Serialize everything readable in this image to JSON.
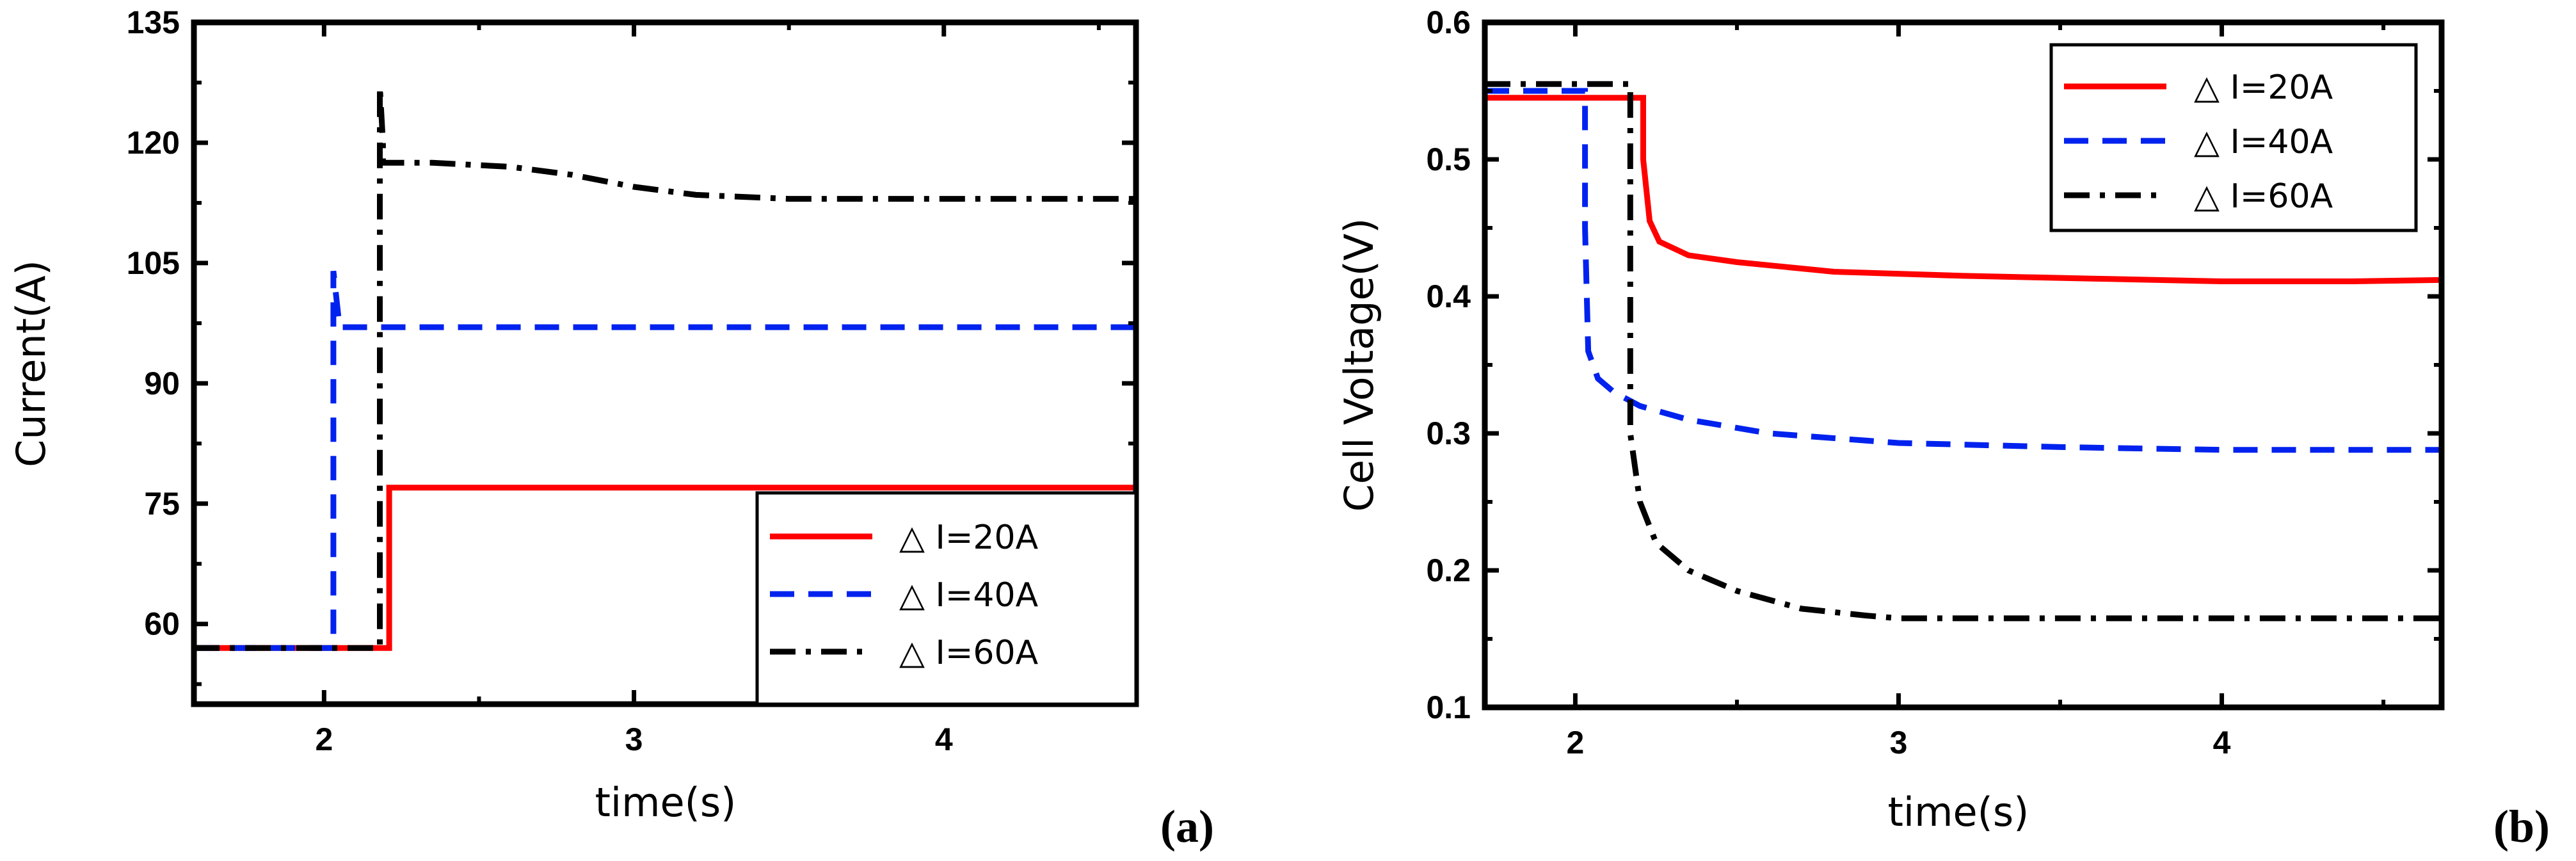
{
  "chart_data": [
    {
      "type": "line",
      "panel_label": "(a)",
      "title": "",
      "xlabel": "time(s)",
      "ylabel": "Current(A)",
      "xlim": [
        1.58,
        4.62
      ],
      "ylim": [
        50,
        135
      ],
      "xticks": [
        2,
        3,
        4
      ],
      "xtick_labels": [
        "2",
        "3",
        "4"
      ],
      "yticks": [
        60,
        75,
        90,
        105,
        120,
        135
      ],
      "ytick_labels": [
        "60",
        "75",
        "90",
        "105",
        "120",
        "135"
      ],
      "legend_position": "bottom-right",
      "series": [
        {
          "name": "△ I=20A",
          "color": "#ff0000",
          "style": "solid",
          "x": [
            1.58,
            2.21,
            2.21,
            4.62
          ],
          "y": [
            57,
            57,
            77,
            77
          ]
        },
        {
          "name": "△ I=40A",
          "color": "#0022ee",
          "style": "dash",
          "x": [
            1.58,
            2.03,
            2.03,
            2.05,
            2.05,
            4.62
          ],
          "y": [
            57,
            57,
            104,
            97,
            97,
            97
          ]
        },
        {
          "name": "△ I=60A",
          "color": "#000000",
          "style": "dashdot",
          "x": [
            1.58,
            2.18,
            2.18,
            2.19,
            2.19,
            2.35,
            2.6,
            2.8,
            3.0,
            3.2,
            3.5,
            4.0,
            4.62
          ],
          "y": [
            57,
            57,
            127,
            120,
            117.5,
            117.5,
            117,
            116,
            114.5,
            113.5,
            113,
            113,
            113
          ]
        }
      ]
    },
    {
      "type": "line",
      "panel_label": "(b)",
      "title": "",
      "xlabel": "time(s)",
      "ylabel": "Cell Voltage(V)",
      "xlim": [
        1.72,
        4.68
      ],
      "ylim": [
        0.1,
        0.6
      ],
      "xticks": [
        2,
        3,
        4
      ],
      "xtick_labels": [
        "2",
        "3",
        "4"
      ],
      "yticks": [
        0.1,
        0.2,
        0.3,
        0.4,
        0.5,
        0.6
      ],
      "ytick_labels": [
        "0.1",
        "0.2",
        "0.3",
        "0.4",
        "0.5",
        "0.6"
      ],
      "legend_position": "top-right",
      "series": [
        {
          "name": "△ I=20A",
          "color": "#ff0000",
          "style": "solid",
          "x": [
            1.72,
            2.21,
            2.21,
            2.23,
            2.26,
            2.35,
            2.5,
            2.8,
            3.2,
            3.6,
            4.0,
            4.4,
            4.68
          ],
          "y": [
            0.545,
            0.545,
            0.5,
            0.455,
            0.44,
            0.43,
            0.425,
            0.418,
            0.415,
            0.413,
            0.411,
            0.411,
            0.412
          ]
        },
        {
          "name": "△ I=40A",
          "color": "#0022ee",
          "style": "dash",
          "x": [
            1.72,
            2.03,
            2.03,
            2.04,
            2.07,
            2.12,
            2.2,
            2.35,
            2.6,
            3.0,
            3.5,
            4.0,
            4.68
          ],
          "y": [
            0.55,
            0.55,
            0.45,
            0.36,
            0.34,
            0.33,
            0.32,
            0.31,
            0.3,
            0.293,
            0.29,
            0.288,
            0.288
          ]
        },
        {
          "name": "△ I=60A",
          "color": "#000000",
          "style": "dashdot",
          "x": [
            1.72,
            2.17,
            2.17,
            2.2,
            2.25,
            2.35,
            2.5,
            2.7,
            2.9,
            3.0,
            3.5,
            4.0,
            4.68
          ],
          "y": [
            0.555,
            0.555,
            0.3,
            0.25,
            0.22,
            0.2,
            0.185,
            0.172,
            0.167,
            0.165,
            0.165,
            0.165,
            0.165
          ]
        }
      ]
    }
  ]
}
